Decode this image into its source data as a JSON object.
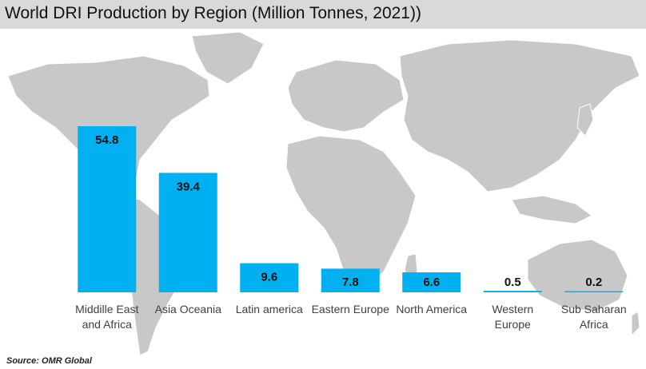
{
  "title": "World DRI Production by Region (Million Tonnes, 2021))",
  "source": "Source: OMR Global",
  "colors": {
    "bar": "#00b0f0",
    "map": "#c8c8c8",
    "title_bg": "#d9d9d9"
  },
  "chart_data": {
    "type": "bar",
    "title": "World DRI Production by Region (Million Tonnes, 2021))",
    "categories": [
      [
        "Middille East",
        "and Africa"
      ],
      [
        "Asia Oceania"
      ],
      [
        "Latin america"
      ],
      [
        "Eastern Europe"
      ],
      [
        "North America"
      ],
      [
        "Western",
        "Europe"
      ],
      [
        "Sub Saharan",
        "Africa"
      ]
    ],
    "values": [
      54.8,
      39.4,
      9.6,
      7.8,
      6.6,
      0.5,
      0.2
    ],
    "value_labels": [
      "54.8",
      "39.4",
      "9.6",
      "7.8",
      "6.6",
      "0.5",
      "0.2"
    ],
    "ylim": [
      0,
      60
    ],
    "grid": false,
    "legend": "none",
    "background": "world-map"
  }
}
